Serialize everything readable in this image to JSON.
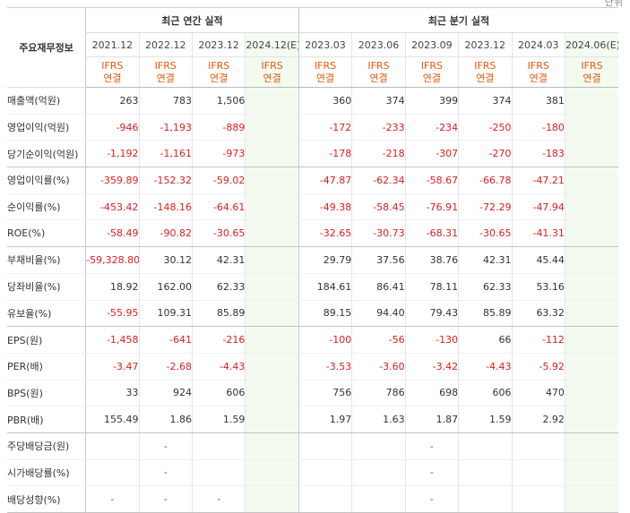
{
  "unit_label": "단위",
  "label_header": "주요재무정보",
  "annual_header": "최근 연간 실적",
  "quarter_header": "최근 분기 실적",
  "periods": [
    {
      "label": "2021.12",
      "ifrs": "IFRS",
      "basis": "연결",
      "est": false
    },
    {
      "label": "2022.12",
      "ifrs": "IFRS",
      "basis": "연결",
      "est": false
    },
    {
      "label": "2023.12",
      "ifrs": "IFRS",
      "basis": "연결",
      "est": false
    },
    {
      "label": "2024.12(E)",
      "ifrs": "IFRS",
      "basis": "연결",
      "est": true
    },
    {
      "label": "2023.03",
      "ifrs": "IFRS",
      "basis": "연결",
      "est": false
    },
    {
      "label": "2023.06",
      "ifrs": "IFRS",
      "basis": "연결",
      "est": false
    },
    {
      "label": "2023.09",
      "ifrs": "IFRS",
      "basis": "연결",
      "est": false
    },
    {
      "label": "2023.12",
      "ifrs": "IFRS",
      "basis": "연결",
      "est": false
    },
    {
      "label": "2024.03",
      "ifrs": "IFRS",
      "basis": "연결",
      "est": false
    },
    {
      "label": "2024.06(E)",
      "ifrs": "IFRS",
      "basis": "연결",
      "est": true
    }
  ],
  "rows": [
    {
      "label": "매출액(억원)",
      "values": [
        "263",
        "783",
        "1,506",
        "",
        "360",
        "374",
        "399",
        "374",
        "381",
        ""
      ]
    },
    {
      "label": "영업이익(억원)",
      "values": [
        "-946",
        "-1,193",
        "-889",
        "",
        "-172",
        "-233",
        "-234",
        "-250",
        "-180",
        ""
      ]
    },
    {
      "label": "당기순이익(억원)",
      "values": [
        "-1,192",
        "-1,161",
        "-973",
        "",
        "-178",
        "-218",
        "-307",
        "-270",
        "-183",
        ""
      ]
    },
    {
      "label": "영업이익률(%)",
      "values": [
        "-359.89",
        "-152.32",
        "-59.02",
        "",
        "-47.87",
        "-62.34",
        "-58.67",
        "-66.78",
        "-47.21",
        ""
      ]
    },
    {
      "label": "순이익률(%)",
      "values": [
        "-453.42",
        "-148.16",
        "-64.61",
        "",
        "-49.38",
        "-58.45",
        "-76.91",
        "-72.29",
        "-47.94",
        ""
      ]
    },
    {
      "label": "ROE(%)",
      "values": [
        "-58.49",
        "-90.82",
        "-30.65",
        "",
        "-32.65",
        "-30.73",
        "-68.31",
        "-30.65",
        "-41.31",
        ""
      ]
    },
    {
      "label": "부채비율(%)",
      "values": [
        "-59,328.80",
        "30.12",
        "42.31",
        "",
        "29.79",
        "37.56",
        "38.76",
        "42.31",
        "45.44",
        ""
      ]
    },
    {
      "label": "당좌비율(%)",
      "values": [
        "18.92",
        "162.00",
        "62.33",
        "",
        "184.61",
        "86.41",
        "78.11",
        "62.33",
        "53.16",
        ""
      ]
    },
    {
      "label": "유보율(%)",
      "values": [
        "-55.95",
        "109.31",
        "85.89",
        "",
        "89.15",
        "94.40",
        "79.43",
        "85.89",
        "63.32",
        ""
      ]
    },
    {
      "label": "EPS(원)",
      "values": [
        "-1,458",
        "-641",
        "-216",
        "",
        "-100",
        "-56",
        "-130",
        "66",
        "-112",
        ""
      ]
    },
    {
      "label": "PER(배)",
      "values": [
        "-3.47",
        "-2.68",
        "-4.43",
        "",
        "-3.53",
        "-3.60",
        "-3.42",
        "-4.43",
        "-5.92",
        ""
      ]
    },
    {
      "label": "BPS(원)",
      "values": [
        "33",
        "924",
        "606",
        "",
        "756",
        "786",
        "698",
        "606",
        "470",
        ""
      ]
    },
    {
      "label": "PBR(배)",
      "values": [
        "155.49",
        "1.86",
        "1.59",
        "",
        "1.97",
        "1.63",
        "1.87",
        "1.59",
        "2.92",
        ""
      ]
    },
    {
      "label": "주당배당금(원)",
      "values": [
        "",
        "-",
        "",
        "",
        "",
        "",
        "-",
        "",
        "",
        ""
      ]
    },
    {
      "label": "시가배당률(%)",
      "values": [
        "",
        "-",
        "",
        "",
        "",
        "",
        "-",
        "",
        "",
        ""
      ]
    },
    {
      "label": "배당성향(%)",
      "values": [
        "-",
        "-",
        "-",
        "",
        "",
        "",
        "-",
        "",
        "",
        ""
      ]
    }
  ]
}
